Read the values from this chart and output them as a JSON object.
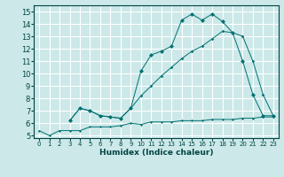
{
  "xlabel": "Humidex (Indice chaleur)",
  "bg_color": "#cce8e8",
  "grid_color": "#ffffff",
  "line_color": "#007070",
  "xlim": [
    -0.5,
    23.5
  ],
  "ylim": [
    4.8,
    15.5
  ],
  "xticks": [
    0,
    1,
    2,
    3,
    4,
    5,
    6,
    7,
    8,
    9,
    10,
    11,
    12,
    13,
    14,
    15,
    16,
    17,
    18,
    19,
    20,
    21,
    22,
    23
  ],
  "yticks": [
    5,
    6,
    7,
    8,
    9,
    10,
    11,
    12,
    13,
    14,
    15
  ],
  "line1_x": [
    0,
    1,
    2,
    3,
    4,
    5,
    6,
    7,
    8,
    9,
    10,
    11,
    12,
    13,
    14,
    15,
    16,
    17,
    18,
    19,
    20,
    21,
    22,
    23
  ],
  "line1_y": [
    5.4,
    5.0,
    5.4,
    5.4,
    5.4,
    5.7,
    5.7,
    5.7,
    5.8,
    6.0,
    5.9,
    6.1,
    6.1,
    6.1,
    6.2,
    6.2,
    6.2,
    6.3,
    6.3,
    6.3,
    6.4,
    6.4,
    6.5,
    6.5
  ],
  "line2_x": [
    3,
    4,
    5,
    6,
    7,
    8,
    9,
    10,
    11,
    12,
    13,
    14,
    15,
    16,
    17,
    18,
    19,
    20,
    21,
    22,
    23
  ],
  "line2_y": [
    6.2,
    7.2,
    7.0,
    6.6,
    6.5,
    6.4,
    7.2,
    8.2,
    9.0,
    9.8,
    10.5,
    11.2,
    11.8,
    12.2,
    12.8,
    13.4,
    13.3,
    13.0,
    11.0,
    8.3,
    6.6
  ],
  "line3_x": [
    3,
    4,
    5,
    6,
    7,
    8,
    9,
    10,
    11,
    12,
    13,
    14,
    15,
    16,
    17,
    18,
    19,
    20,
    21,
    22,
    23
  ],
  "line3_y": [
    6.2,
    7.2,
    7.0,
    6.6,
    6.5,
    6.4,
    7.2,
    10.2,
    11.5,
    11.8,
    12.2,
    14.3,
    14.8,
    14.3,
    14.8,
    14.2,
    13.3,
    11.0,
    8.3,
    6.6,
    6.6
  ]
}
